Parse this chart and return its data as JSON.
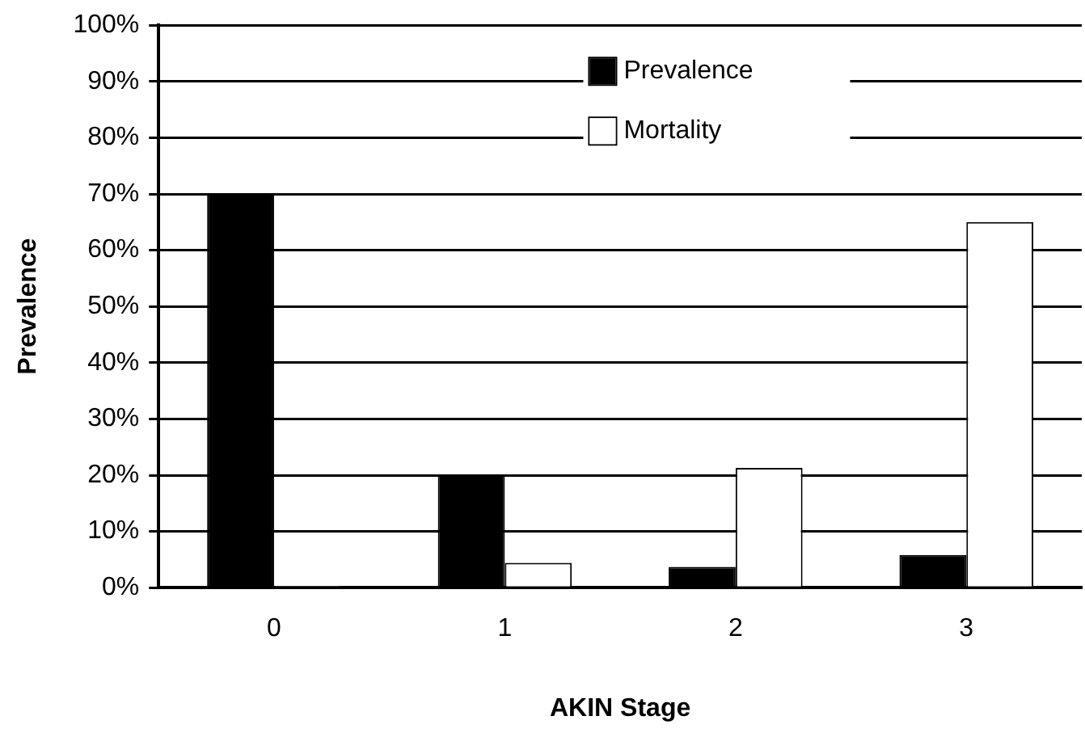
{
  "chart_data": {
    "type": "bar",
    "xlabel": "AKIN Stage",
    "ylabel": "Prevalence",
    "categories": [
      "0",
      "1",
      "2",
      "3"
    ],
    "series": [
      {
        "name": "Prevalence",
        "color": "#000000",
        "values": [
          70,
          20,
          3.7,
          5.8
        ]
      },
      {
        "name": "Mortality",
        "color": "#ffffff",
        "values": [
          0.3,
          4.4,
          21.3,
          65
        ]
      }
    ],
    "ylim": [
      0,
      100
    ],
    "yticks": [
      {
        "value": 0,
        "label": "0%"
      },
      {
        "value": 10,
        "label": "10%"
      },
      {
        "value": 20,
        "label": "20%"
      },
      {
        "value": 30,
        "label": "30%"
      },
      {
        "value": 40,
        "label": "40%"
      },
      {
        "value": 50,
        "label": "50%"
      },
      {
        "value": 60,
        "label": "60%"
      },
      {
        "value": 70,
        "label": "70%"
      },
      {
        "value": 80,
        "label": "80%"
      },
      {
        "value": 90,
        "label": "90%"
      },
      {
        "value": 100,
        "label": "100%"
      }
    ],
    "grid": "y",
    "legend": "top right"
  }
}
